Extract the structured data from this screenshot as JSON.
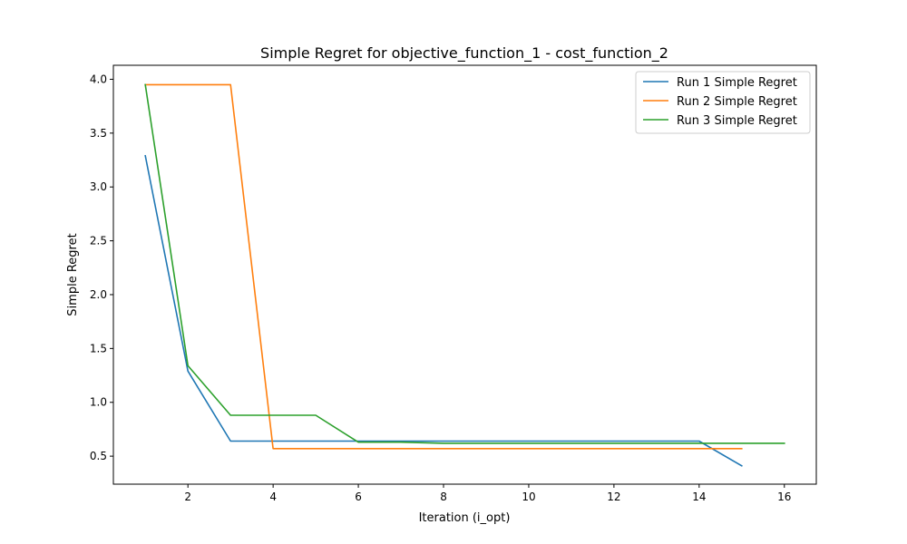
{
  "chart_data": {
    "type": "line",
    "title": "Simple Regret for objective_function_1 - cost_function_2",
    "xlabel": "Iteration (i_opt)",
    "ylabel": "Simple Regret",
    "xlim": [
      0.25,
      16.75
    ],
    "ylim": [
      0.24,
      4.13
    ],
    "xticks": [
      2,
      4,
      6,
      8,
      10,
      12,
      14,
      16
    ],
    "xtick_labels": [
      "2",
      "4",
      "6",
      "8",
      "10",
      "12",
      "14",
      "16"
    ],
    "yticks": [
      0.5,
      1.0,
      1.5,
      2.0,
      2.5,
      3.0,
      3.5,
      4.0
    ],
    "ytick_labels": [
      "0.5",
      "1.0",
      "1.5",
      "2.0",
      "2.5",
      "3.0",
      "3.5",
      "4.0"
    ],
    "grid": false,
    "legend_position": "top-right",
    "series": [
      {
        "name": "Run 1 Simple Regret",
        "color": "#1f77b4",
        "x": [
          1,
          2,
          3,
          4,
          5,
          6,
          7,
          8,
          9,
          10,
          11,
          12,
          13,
          14,
          15
        ],
        "y": [
          3.29,
          1.29,
          0.64,
          0.64,
          0.64,
          0.64,
          0.64,
          0.64,
          0.64,
          0.64,
          0.64,
          0.64,
          0.64,
          0.64,
          0.41
        ]
      },
      {
        "name": "Run 2 Simple Regret",
        "color": "#ff7f0e",
        "x": [
          1,
          2,
          3,
          4,
          5,
          6,
          7,
          8,
          9,
          10,
          11,
          12,
          13,
          14,
          15
        ],
        "y": [
          3.95,
          3.95,
          3.95,
          0.57,
          0.57,
          0.57,
          0.57,
          0.57,
          0.57,
          0.57,
          0.57,
          0.57,
          0.57,
          0.57,
          0.57
        ]
      },
      {
        "name": "Run 3 Simple Regret",
        "color": "#2ca02c",
        "x": [
          1,
          2,
          3,
          4,
          5,
          6,
          7,
          8,
          9,
          10,
          11,
          12,
          13,
          14,
          15,
          16
        ],
        "y": [
          3.95,
          1.34,
          0.88,
          0.88,
          0.88,
          0.63,
          0.63,
          0.62,
          0.62,
          0.62,
          0.62,
          0.62,
          0.62,
          0.62,
          0.62,
          0.62
        ]
      }
    ]
  }
}
